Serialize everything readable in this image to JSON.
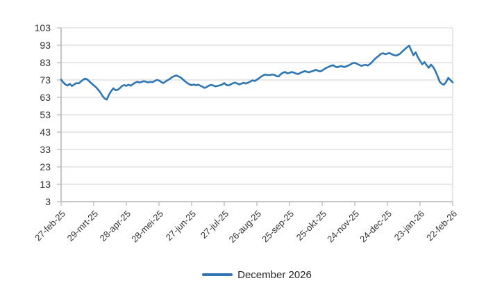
{
  "chart_data": {
    "type": "line",
    "x_tick_labels": [
      "27-feb-25",
      "29-mrt-25",
      "28-apr-25",
      "28-mei-25",
      "27-jun-25",
      "27-jul-25",
      "26-aug-25",
      "25-sep-25",
      "25-okt-25",
      "24-nov-25",
      "24-dec-25",
      "23-jan-26",
      "22-feb-26"
    ],
    "y_ticks": [
      3,
      13,
      23,
      33,
      43,
      53,
      63,
      73,
      83,
      93,
      103
    ],
    "ylim": [
      3,
      103
    ],
    "x_range_days": 360,
    "sample_interval_days": 2,
    "grid": "horizontal-major",
    "legend_position": "bottom-center",
    "colors": {
      "line": "#2E75B6",
      "gridline": "#D9D9D9",
      "axis": "#BFBFBF",
      "tick_label": "#333333",
      "legend_text": "#262626"
    },
    "series": [
      {
        "name": "December 2026",
        "color": "#2E75B6",
        "values": [
          73.2,
          71.6,
          70.4,
          69.8,
          70.8,
          69.5,
          70.4,
          71.2,
          71.0,
          72.0,
          73.0,
          73.8,
          73.3,
          72.2,
          71.0,
          69.9,
          68.9,
          67.4,
          65.9,
          63.9,
          62.3,
          61.7,
          64.5,
          66.6,
          68.2,
          67.1,
          67.3,
          68.3,
          69.5,
          70.1,
          69.6,
          70.3,
          69.7,
          70.6,
          71.4,
          72.0,
          71.5,
          71.9,
          72.3,
          72.0,
          71.6,
          71.9,
          71.7,
          72.4,
          73.0,
          72.7,
          71.9,
          71.2,
          72.1,
          72.9,
          73.6,
          74.6,
          75.2,
          75.6,
          75.0,
          74.4,
          73.3,
          72.2,
          71.2,
          70.5,
          70.0,
          70.4,
          69.9,
          70.3,
          69.7,
          69.1,
          68.4,
          69.0,
          69.8,
          70.2,
          69.8,
          69.3,
          69.6,
          69.9,
          70.4,
          71.2,
          70.1,
          69.8,
          70.5,
          71.1,
          71.5,
          70.9,
          70.4,
          71.0,
          71.4,
          70.9,
          71.5,
          72.1,
          72.8,
          72.4,
          73.2,
          74.0,
          75.0,
          75.7,
          76.1,
          75.8,
          75.9,
          76.1,
          76.0,
          75.2,
          75.0,
          76.4,
          77.2,
          77.6,
          76.8,
          77.1,
          77.6,
          77.2,
          76.7,
          76.4,
          77.1,
          77.6,
          78.1,
          77.7,
          77.4,
          77.9,
          78.2,
          78.9,
          78.3,
          77.9,
          78.4,
          79.3,
          80.0,
          80.6,
          81.1,
          81.5,
          80.7,
          80.3,
          80.8,
          81.0,
          80.4,
          80.8,
          81.3,
          81.9,
          82.7,
          82.9,
          82.3,
          81.7,
          81.1,
          81.5,
          81.7,
          81.3,
          82.2,
          83.4,
          84.8,
          85.9,
          86.9,
          88.0,
          88.4,
          87.8,
          88.2,
          88.5,
          87.8,
          87.3,
          87.0,
          87.5,
          88.3,
          89.6,
          90.7,
          91.8,
          92.7,
          89.8,
          87.2,
          88.9,
          86.0,
          84.0,
          82.0,
          83.3,
          81.6,
          80.0,
          81.8,
          80.5,
          78.3,
          75.4,
          72.1,
          70.8,
          70.3,
          71.9,
          74.2,
          72.9,
          71.6
        ]
      }
    ]
  }
}
